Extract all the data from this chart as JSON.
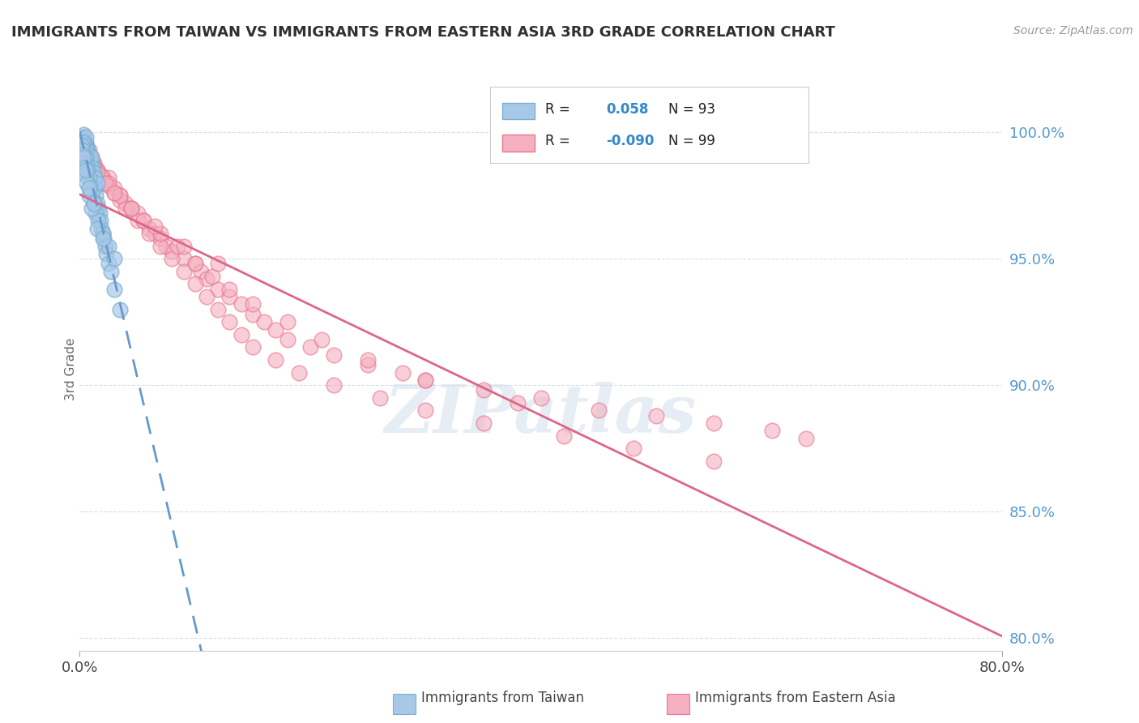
{
  "title": "IMMIGRANTS FROM TAIWAN VS IMMIGRANTS FROM EASTERN ASIA 3RD GRADE CORRELATION CHART",
  "source": "Source: ZipAtlas.com",
  "ylabel": "3rd Grade",
  "y_ticks": [
    80.0,
    85.0,
    90.0,
    95.0,
    100.0
  ],
  "x_range": [
    0.0,
    80.0
  ],
  "y_range": [
    79.5,
    101.8
  ],
  "taiwan_R": 0.058,
  "taiwan_N": 93,
  "eastern_asia_R": -0.09,
  "eastern_asia_N": 99,
  "taiwan_color": "#a8c8e8",
  "taiwan_edge_color": "#7aafd0",
  "eastern_asia_color": "#f4b0c0",
  "eastern_asia_edge_color": "#e87890",
  "taiwan_line_color": "#6699cc",
  "eastern_asia_line_color": "#dd6688",
  "grid_color": "#d8dfe8",
  "background_color": "#ffffff",
  "title_color": "#303030",
  "axis_label_color": "#5599cc",
  "legend_label_taiwan": "Immigrants from Taiwan",
  "legend_label_eastern": "Immigrants from Eastern Asia",
  "watermark": "ZIPatlas",
  "taiwan_scatter_x": [
    0.1,
    0.15,
    0.2,
    0.2,
    0.25,
    0.3,
    0.3,
    0.3,
    0.35,
    0.35,
    0.4,
    0.4,
    0.4,
    0.45,
    0.45,
    0.5,
    0.5,
    0.5,
    0.5,
    0.55,
    0.55,
    0.6,
    0.6,
    0.6,
    0.65,
    0.7,
    0.7,
    0.7,
    0.75,
    0.8,
    0.8,
    0.85,
    0.85,
    0.9,
    0.9,
    0.95,
    1.0,
    1.0,
    1.0,
    1.1,
    1.1,
    1.2,
    1.2,
    1.3,
    1.3,
    1.4,
    1.5,
    1.5,
    1.6,
    1.7,
    1.8,
    1.9,
    2.0,
    2.1,
    2.2,
    2.3,
    2.5,
    2.7,
    3.0,
    3.5,
    0.2,
    0.25,
    0.3,
    0.35,
    0.4,
    0.45,
    0.5,
    0.6,
    0.7,
    0.8,
    0.9,
    1.0,
    1.2,
    1.4,
    1.6,
    2.0,
    2.5,
    3.0,
    0.15,
    0.2,
    0.25,
    0.3,
    0.35,
    0.4,
    0.5,
    0.6,
    0.8,
    1.0,
    1.5,
    2.0,
    0.5,
    0.8,
    1.2
  ],
  "taiwan_scatter_y": [
    99.6,
    99.5,
    99.7,
    99.3,
    99.8,
    99.5,
    99.2,
    99.9,
    99.4,
    99.6,
    99.3,
    99.7,
    99.1,
    99.5,
    99.0,
    99.6,
    99.2,
    98.9,
    99.8,
    99.3,
    99.5,
    99.1,
    98.8,
    99.4,
    99.2,
    99.0,
    98.7,
    99.3,
    98.9,
    99.1,
    98.6,
    98.8,
    99.0,
    98.5,
    98.9,
    98.7,
    98.4,
    98.8,
    99.0,
    98.2,
    98.6,
    98.0,
    98.4,
    97.8,
    98.2,
    97.5,
    97.2,
    98.0,
    97.0,
    96.8,
    96.5,
    96.2,
    96.0,
    95.8,
    95.5,
    95.2,
    94.8,
    94.5,
    93.8,
    93.0,
    99.2,
    99.4,
    99.6,
    99.1,
    98.9,
    99.3,
    99.0,
    98.7,
    98.5,
    98.2,
    97.9,
    97.6,
    97.2,
    96.8,
    96.5,
    96.0,
    95.5,
    95.0,
    99.5,
    99.3,
    99.1,
    98.8,
    99.0,
    98.6,
    98.3,
    98.0,
    97.5,
    97.0,
    96.2,
    95.8,
    98.5,
    97.8,
    97.2
  ],
  "eastern_scatter_x": [
    0.3,
    0.5,
    0.8,
    1.0,
    1.2,
    1.5,
    1.8,
    2.0,
    2.5,
    3.0,
    3.5,
    4.0,
    4.5,
    5.0,
    5.5,
    6.0,
    6.5,
    7.0,
    7.5,
    8.0,
    9.0,
    10.0,
    10.5,
    11.0,
    12.0,
    13.0,
    14.0,
    15.0,
    16.0,
    17.0,
    18.0,
    20.0,
    22.0,
    25.0,
    28.0,
    30.0,
    35.0,
    40.0,
    45.0,
    50.0,
    55.0,
    60.0,
    63.0,
    0.5,
    1.0,
    1.5,
    2.0,
    2.5,
    3.0,
    3.5,
    4.0,
    5.0,
    6.0,
    7.0,
    8.0,
    9.0,
    10.0,
    11.0,
    12.0,
    13.0,
    14.0,
    15.0,
    17.0,
    19.0,
    22.0,
    26.0,
    30.0,
    35.0,
    42.0,
    48.0,
    55.0,
    0.4,
    0.8,
    1.2,
    1.8,
    2.5,
    3.5,
    4.5,
    5.5,
    7.0,
    8.5,
    10.0,
    11.5,
    13.0,
    15.0,
    18.0,
    21.0,
    25.0,
    30.0,
    38.0,
    0.6,
    1.0,
    1.5,
    2.2,
    3.0,
    4.5,
    6.5,
    9.0,
    12.0
  ],
  "eastern_scatter_y": [
    99.8,
    99.5,
    99.3,
    99.0,
    98.8,
    98.5,
    98.3,
    98.0,
    98.2,
    97.8,
    97.5,
    97.2,
    97.0,
    96.8,
    96.5,
    96.2,
    96.0,
    95.8,
    95.5,
    95.3,
    95.0,
    94.8,
    94.5,
    94.2,
    93.8,
    93.5,
    93.2,
    92.8,
    92.5,
    92.2,
    91.8,
    91.5,
    91.2,
    90.8,
    90.5,
    90.2,
    89.8,
    89.5,
    89.0,
    88.8,
    88.5,
    88.2,
    87.9,
    99.2,
    98.8,
    98.5,
    98.2,
    97.9,
    97.6,
    97.3,
    97.0,
    96.5,
    96.0,
    95.5,
    95.0,
    94.5,
    94.0,
    93.5,
    93.0,
    92.5,
    92.0,
    91.5,
    91.0,
    90.5,
    90.0,
    89.5,
    89.0,
    88.5,
    88.0,
    87.5,
    87.0,
    99.5,
    99.0,
    98.7,
    98.3,
    98.0,
    97.5,
    97.0,
    96.5,
    96.0,
    95.5,
    94.8,
    94.3,
    93.8,
    93.2,
    92.5,
    91.8,
    91.0,
    90.2,
    89.3,
    99.3,
    98.9,
    98.4,
    98.0,
    97.6,
    97.0,
    96.3,
    95.5,
    94.8
  ]
}
